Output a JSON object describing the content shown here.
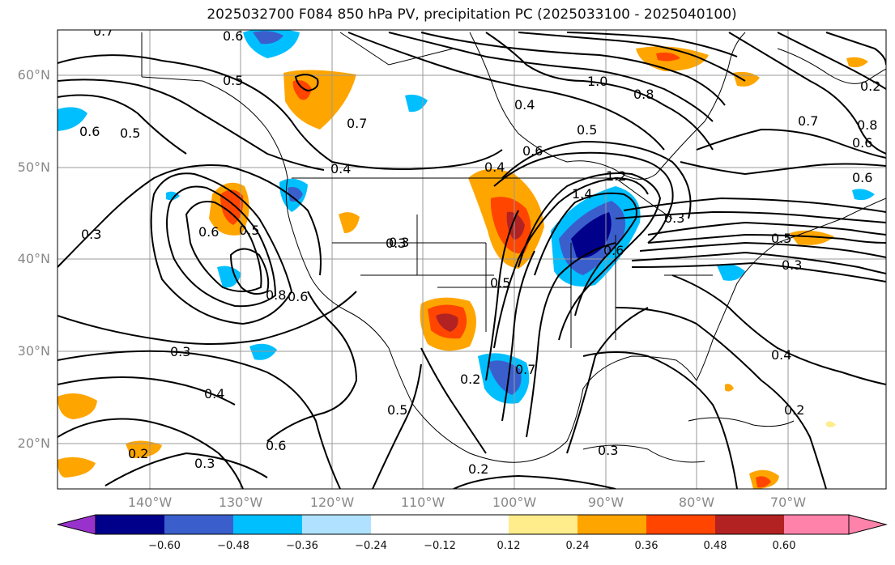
{
  "title": "2025032700 F084 850 hPa PV, precipitation PC (2025033100 - 2025040100)",
  "lat_labels": [
    "60°N",
    "50°N",
    "40°N",
    "30°N",
    "20°N"
  ],
  "lon_labels": [
    "140°W",
    "130°W",
    "120°W",
    "110°W",
    "100°W",
    "90°W",
    "80°W",
    "70°W"
  ],
  "contour_labels": [
    "0.7",
    "0.6",
    "0.5",
    "0.6",
    "0.4",
    "1.0",
    "0.8",
    "0.7",
    "0.8",
    "0.7",
    "0.5",
    "0.6",
    "0.4",
    "0.6",
    "0.5",
    "0.3",
    "0.6",
    "0.5",
    "0.8",
    "0.6",
    "0.4",
    "0.3",
    "1.2",
    "1.4",
    "0.5",
    "0.3",
    "0.3",
    "0.3",
    "0.5",
    "0.6",
    "0.4",
    "0.3",
    "0.2",
    "0.7",
    "0.5",
    "0.6",
    "0.2",
    "0.2",
    "0.3",
    "0.2",
    "0.3",
    "0.4",
    "0.2",
    "0.6"
  ],
  "colorbar": {
    "ticks": [
      "−0.60",
      "−0.48",
      "−0.36",
      "−0.24",
      "−0.12",
      "0.12",
      "0.24",
      "0.36",
      "0.48",
      "0.60"
    ],
    "colors": [
      "#9932CC",
      "#00008B",
      "#3A5FCD",
      "#00BFFF",
      "#B0E2FF",
      "#FFFFFF",
      "#FFEC8B",
      "#FFA500",
      "#FF4500",
      "#B22222",
      "#FF82AB"
    ]
  }
}
